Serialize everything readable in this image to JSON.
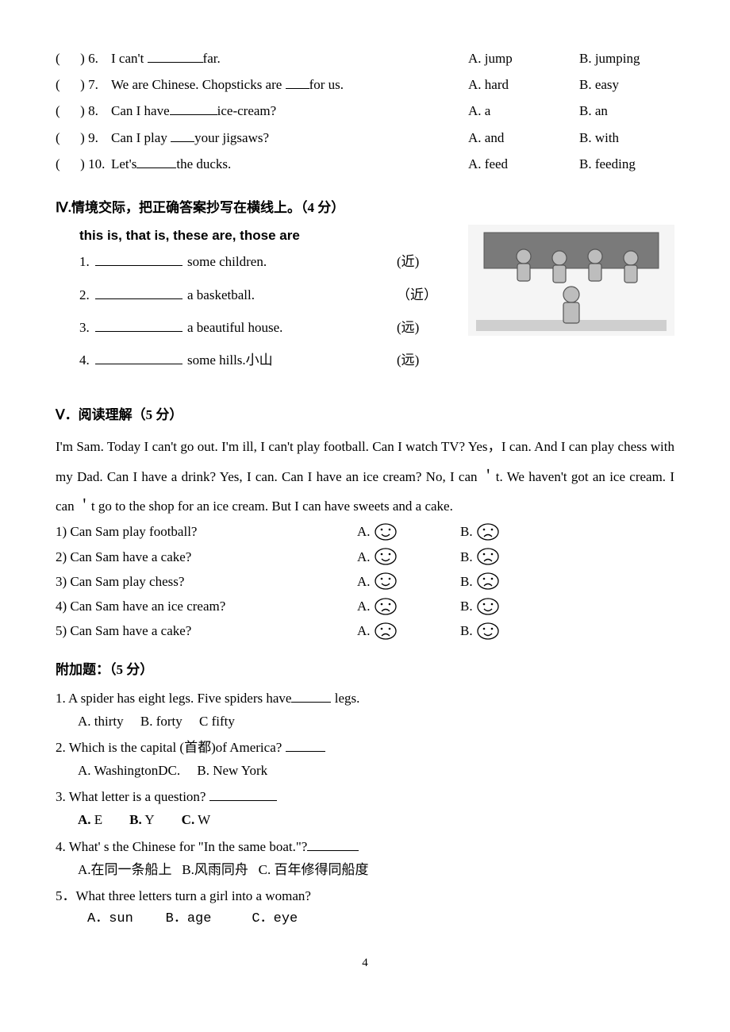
{
  "mcq": [
    {
      "n": "6",
      "stem_pre": "I can't ",
      "blank_w": 70,
      "stem_post": "far.",
      "A": "A. jump",
      "B": "B. jumping"
    },
    {
      "n": "7",
      "stem_pre": "We are Chinese. Chopsticks are ",
      "blank_w": 30,
      "stem_post": "for us.",
      "A": "A. hard",
      "B": "B. easy"
    },
    {
      "n": "8",
      "stem_pre": "Can I have",
      "blank_w": 60,
      "stem_post": "ice-cream?",
      "A": "A. a",
      "B": "B. an"
    },
    {
      "n": "9",
      "stem_pre": "Can I play ",
      "blank_w": 30,
      "stem_post": "your jigsaws?",
      "A": "A. and",
      "B": "B. with"
    },
    {
      "n": "10",
      "stem_pre": "Let's",
      "blank_w": 50,
      "stem_post": "the ducks.",
      "A": "A. feed",
      "B": "B. feeding"
    }
  ],
  "sec4": {
    "title": "Ⅳ.情境交际，把正确答案抄写在横线上。（4 分）",
    "bank": "this is,   that is,   these are,   those are",
    "items": [
      {
        "n": "1.",
        "tail": " some children.",
        "dist": "(近)"
      },
      {
        "n": "2.",
        "tail": " a basketball.",
        "dist": "（近）"
      },
      {
        "n": "3.",
        "tail": " a beautiful house.",
        "dist": "(远)"
      },
      {
        "n": "4.",
        "tail": " some hills.小山",
        "dist": "(远)"
      }
    ]
  },
  "sec5": {
    "title": "Ⅴ．阅读理解（5 分）",
    "passage": "I'm Sam. Today I can't go out. I'm ill, I can't play football. Can I watch TV? Yes，I can. And I can play chess with my Dad. Can I have a drink? Yes, I can. Can I have an ice cream? No, I can ＇t. We haven't got an ice cream. I can ＇t go to the shop for an ice cream. But I can have sweets and a cake.",
    "questions": [
      {
        "q": "1) Can Sam play football?",
        "A_face": "smile",
        "B_face": "frown"
      },
      {
        "q": "2) Can Sam have a cake?",
        "A_face": "smile",
        "B_face": "frown"
      },
      {
        "q": "3) Can Sam play chess?",
        "A_face": "smile",
        "B_face": "frown"
      },
      {
        "q": "4) Can Sam have an ice cream?",
        "A_face": "frown",
        "B_face": "smile"
      },
      {
        "q": "5) Can Sam have a cake?",
        "A_face": "frown",
        "B_face": "smile"
      }
    ]
  },
  "bonus": {
    "title": "附加题：（5 分）",
    "items": [
      {
        "q_pre": "1. A spider has eight legs. Five spiders have",
        "blank_w": 50,
        "q_post": " legs.",
        "opts": "A. thirty     B. forty     C fifty",
        "bold_opts": false
      },
      {
        "q_pre": "2. Which is the capital (首都)of America? ",
        "blank_w": 50,
        "q_post": "",
        "opts": "A. WashingtonDC.     B. New York",
        "bold_opts": false
      },
      {
        "q_pre": "3. What letter is a question?  ",
        "blank_w": 85,
        "q_post": "",
        "opts": "A. E        B. Y        C. W",
        "bold_opts": true
      },
      {
        "q_pre": "4. What' s the Chinese for \"In the same boat.\"?",
        "blank_w": 65,
        "q_post": "",
        "opts": "A.在同一条船上   B.风雨同舟   C. 百年修得同船度",
        "bold_opts": false
      },
      {
        "q_pre": "5．What three letters turn a girl into a woman?",
        "blank_w": 0,
        "q_post": "",
        "opts": "A．sun    B．age     C．eye",
        "bold_opts": false,
        "opts_font": "courier"
      }
    ]
  },
  "page_number": "4",
  "colors": {
    "text": "#000000",
    "bg": "#ffffff",
    "img_bg": "#f5f5f5",
    "img_stroke": "#6b6b6b"
  },
  "labels": {
    "A": "A.",
    "B": "B."
  }
}
